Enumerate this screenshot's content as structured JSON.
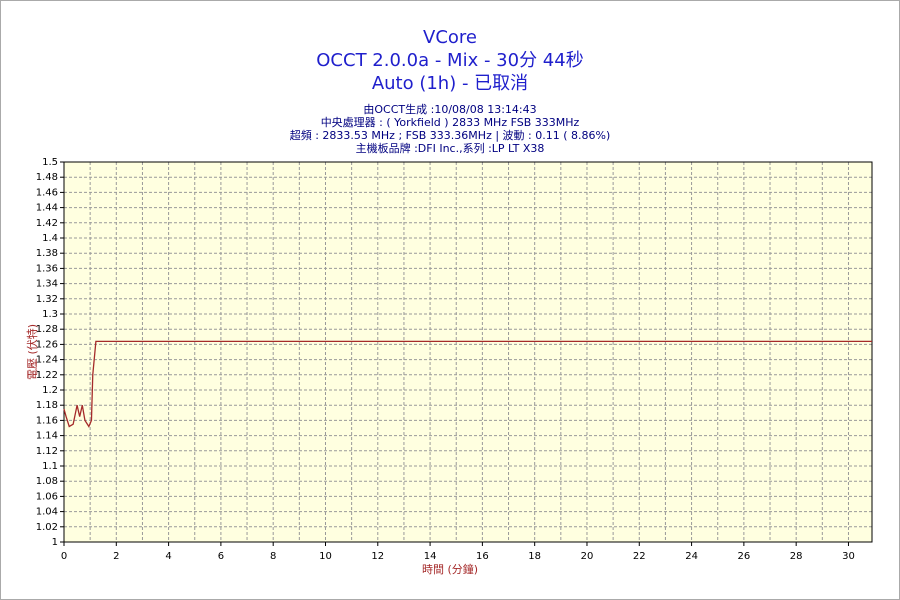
{
  "chart_data": {
    "type": "line",
    "title": "VCore",
    "subtitle": [
      "OCCT 2.0.0a - Mix - 30分 44秒",
      "Auto (1h) - 已取消"
    ],
    "info": [
      "由OCCT生成 :10/08/08 13:14:43",
      "中央處理器 : ( Yorkfield ) 2833 MHz FSB 333MHz",
      "超頻 : 2833.53 MHz ; FSB 333.36MHz | 波動 : 0.11 ( 8.86%)",
      "主機板品牌 :DFI Inc.,系列 :LP LT X38"
    ],
    "x_label": "時間 (分鐘)",
    "y_label": "電壓 (伏特)",
    "x": [
      0,
      0.08,
      0.2,
      0.35,
      0.5,
      0.6,
      0.7,
      0.8,
      0.95,
      1.05,
      1.1,
      1.22,
      30.9
    ],
    "series": [
      {
        "color": "#a52a2a",
        "values": [
          1.175,
          1.165,
          1.152,
          1.155,
          1.18,
          1.165,
          1.18,
          1.16,
          1.152,
          1.16,
          1.22,
          1.264,
          1.264
        ]
      }
    ],
    "xlim": [
      0,
      30.9
    ],
    "ylim": [
      1,
      1.5
    ],
    "xticks": [
      0,
      2,
      4,
      6,
      8,
      10,
      12,
      14,
      16,
      18,
      20,
      22,
      24,
      26,
      28,
      30
    ],
    "x_minor_ticks": [
      1,
      3,
      5,
      7,
      9,
      11,
      13,
      15,
      17,
      19,
      21,
      23,
      25,
      27,
      29
    ],
    "yticks": [
      1,
      1.02,
      1.04,
      1.06,
      1.08,
      1.1,
      1.12,
      1.14,
      1.16,
      1.18,
      1.2,
      1.22,
      1.24,
      1.26,
      1.28,
      1.3,
      1.32,
      1.34,
      1.36,
      1.38,
      1.4,
      1.42,
      1.44,
      1.46,
      1.48,
      1.5
    ],
    "grid": true
  }
}
